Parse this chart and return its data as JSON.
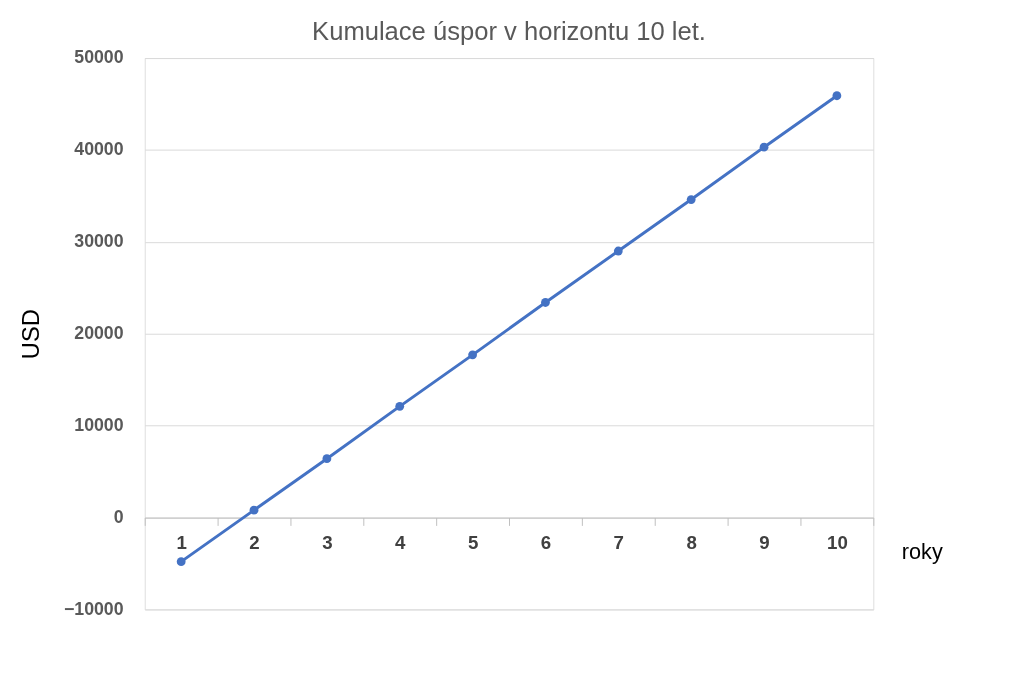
{
  "chart_data": {
    "type": "line",
    "title": "Kumulace úspor v horizontu 10 let.",
    "xlabel": "roky",
    "ylabel": "USD",
    "categories": [
      "1",
      "2",
      "3",
      "4",
      "5",
      "6",
      "7",
      "8",
      "9",
      "10"
    ],
    "series": [
      {
        "color": "#4472c4",
        "values": [
          -4800,
          800,
          6400,
          12100,
          17700,
          23400,
          29000,
          34600,
          40300,
          45900
        ]
      }
    ],
    "ylim": [
      -10000,
      50000
    ],
    "yticks": [
      -10000,
      0,
      10000,
      20000,
      30000,
      40000,
      50000
    ],
    "grid": "y",
    "marker": "circle",
    "line_style": "solid"
  }
}
